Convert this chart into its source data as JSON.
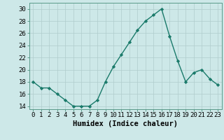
{
  "x": [
    0,
    1,
    2,
    3,
    4,
    5,
    6,
    7,
    8,
    9,
    10,
    11,
    12,
    13,
    14,
    15,
    16,
    17,
    18,
    19,
    20,
    21,
    22,
    23
  ],
  "y": [
    18,
    17,
    17,
    16,
    15,
    14,
    14,
    14,
    15,
    18,
    20.5,
    22.5,
    24.5,
    26.5,
    28,
    29,
    30,
    25.5,
    21.5,
    18,
    19.5,
    20,
    18.5,
    17.5
  ],
  "line_color": "#1a7a6a",
  "marker": "D",
  "marker_size": 2.2,
  "bg_color": "#cde8e8",
  "grid_color": "#b0cccc",
  "xlabel": "Humidex (Indice chaleur)",
  "xlim": [
    -0.5,
    23.5
  ],
  "ylim": [
    13.5,
    31
  ],
  "yticks": [
    14,
    16,
    18,
    20,
    22,
    24,
    26,
    28,
    30
  ],
  "xtick_labels": [
    "0",
    "1",
    "2",
    "3",
    "4",
    "5",
    "6",
    "7",
    "8",
    "9",
    "10",
    "11",
    "12",
    "13",
    "14",
    "15",
    "16",
    "17",
    "18",
    "19",
    "20",
    "21",
    "22",
    "23"
  ],
  "xlabel_fontsize": 7.5,
  "tick_fontsize": 6.5
}
